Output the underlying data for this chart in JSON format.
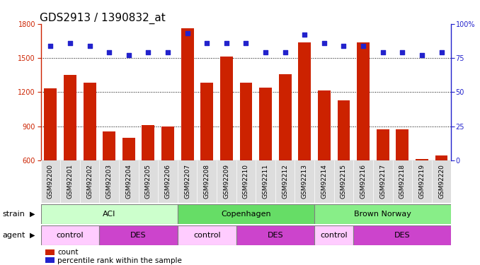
{
  "title": "GDS2913 / 1390832_at",
  "samples": [
    "GSM92200",
    "GSM92201",
    "GSM92202",
    "GSM92203",
    "GSM92204",
    "GSM92205",
    "GSM92206",
    "GSM92207",
    "GSM92208",
    "GSM92209",
    "GSM92210",
    "GSM92211",
    "GSM92212",
    "GSM92213",
    "GSM92214",
    "GSM92215",
    "GSM92216",
    "GSM92217",
    "GSM92218",
    "GSM92219",
    "GSM92220"
  ],
  "counts": [
    1230,
    1350,
    1280,
    855,
    800,
    910,
    900,
    1760,
    1280,
    1510,
    1280,
    1240,
    1360,
    1640,
    1215,
    1130,
    1640,
    870,
    870,
    610,
    645
  ],
  "percentiles": [
    84,
    86,
    84,
    79,
    77,
    79,
    79,
    93,
    86,
    86,
    86,
    79,
    79,
    92,
    86,
    84,
    84,
    79,
    79,
    77,
    79
  ],
  "bar_color": "#cc2200",
  "dot_color": "#2222cc",
  "ylim_left": [
    600,
    1800
  ],
  "ylim_right": [
    0,
    100
  ],
  "yticks_left": [
    600,
    900,
    1200,
    1500,
    1800
  ],
  "yticks_right": [
    0,
    25,
    50,
    75,
    100
  ],
  "strain_groups": [
    {
      "label": "ACI",
      "start": 0,
      "end": 6,
      "color": "#ccffcc"
    },
    {
      "label": "Copenhagen",
      "start": 7,
      "end": 13,
      "color": "#66dd66"
    },
    {
      "label": "Brown Norway",
      "start": 14,
      "end": 20,
      "color": "#88ee88"
    }
  ],
  "agent_groups": [
    {
      "label": "control",
      "start": 0,
      "end": 2,
      "color": "#ffccff"
    },
    {
      "label": "DES",
      "start": 3,
      "end": 6,
      "color": "#dd44dd"
    },
    {
      "label": "control",
      "start": 7,
      "end": 9,
      "color": "#ffccff"
    },
    {
      "label": "DES",
      "start": 10,
      "end": 13,
      "color": "#dd44dd"
    },
    {
      "label": "control",
      "start": 14,
      "end": 15,
      "color": "#ffccff"
    },
    {
      "label": "DES",
      "start": 16,
      "end": 20,
      "color": "#dd44dd"
    }
  ],
  "strain_label": "strain",
  "agent_label": "agent",
  "legend_count_label": "count",
  "legend_pct_label": "percentile rank within the sample",
  "background_color": "#ffffff",
  "title_fontsize": 11,
  "tick_fontsize": 6.5,
  "bar_bottom": 600
}
